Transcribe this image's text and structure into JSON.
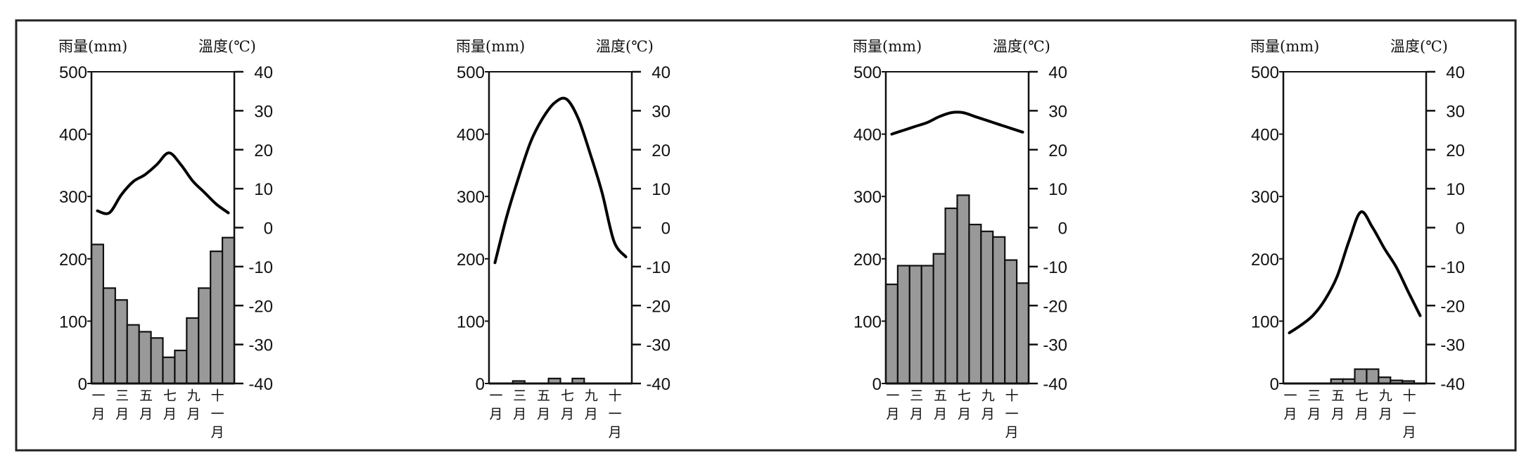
{
  "colors": {
    "bar": "#999999",
    "line": "#000000",
    "axis": "#111111"
  },
  "chart_data": [
    {
      "type": "bar+line",
      "title": "",
      "ylabel_left": "雨量(mm)",
      "ylabel_right": "溫度(℃)",
      "left_ticks": [
        "500",
        "400",
        "300",
        "200",
        "100",
        "0"
      ],
      "right_ticks": [
        "40",
        "30",
        "20",
        "10",
        "0",
        "-10",
        "-20",
        "-30",
        "-40"
      ],
      "rain_ylim": [
        0,
        500
      ],
      "temp_ylim": [
        -40,
        40
      ],
      "month_labels": [
        "一月",
        "三月",
        "五月",
        "七月",
        "九月",
        "十一月"
      ],
      "rainfall_mm": [
        223,
        153,
        134,
        94,
        83,
        73,
        42,
        53,
        105,
        153,
        212,
        234
      ],
      "temperature_c": [
        4.3,
        3.8,
        8.4,
        11.8,
        13.6,
        16.2,
        19.2,
        16.2,
        12,
        9,
        6,
        3.8
      ]
    },
    {
      "type": "bar+line",
      "title": "",
      "ylabel_left": "雨量(mm)",
      "ylabel_right": "溫度(℃)",
      "left_ticks": [
        "500",
        "400",
        "300",
        "200",
        "100",
        "0"
      ],
      "right_ticks": [
        "40",
        "30",
        "20",
        "10",
        "0",
        "-10",
        "-20",
        "-30",
        "-40"
      ],
      "rain_ylim": [
        0,
        500
      ],
      "temp_ylim": [
        -40,
        40
      ],
      "month_labels": [
        "一月",
        "三月",
        "五月",
        "七月",
        "九月",
        "十一月"
      ],
      "rainfall_mm": [
        0,
        0,
        4,
        0,
        0,
        8,
        0,
        8,
        0,
        0,
        0,
        0
      ],
      "temperature_c": [
        -9,
        3,
        13,
        22,
        28,
        32,
        33,
        28,
        19,
        9,
        -3.5,
        -7.5
      ]
    },
    {
      "type": "bar+line",
      "title": "",
      "ylabel_left": "雨量(mm)",
      "ylabel_right": "溫度(℃)",
      "left_ticks": [
        "500",
        "400",
        "300",
        "200",
        "100",
        "0"
      ],
      "right_ticks": [
        "40",
        "30",
        "20",
        "10",
        "0",
        "-10",
        "-20",
        "-30",
        "-40"
      ],
      "rain_ylim": [
        0,
        500
      ],
      "temp_ylim": [
        -40,
        40
      ],
      "month_labels": [
        "一月",
        "三月",
        "五月",
        "七月",
        "九月",
        "十一月"
      ],
      "rainfall_mm": [
        159,
        189,
        189,
        189,
        208,
        281,
        302,
        255,
        244,
        235,
        198,
        161
      ],
      "temperature_c": [
        24,
        25,
        26,
        27,
        28.5,
        29.5,
        29.5,
        28.5,
        27.5,
        26.5,
        25.5,
        24.5
      ]
    },
    {
      "type": "bar+line",
      "title": "",
      "ylabel_left": "雨量(mm)",
      "ylabel_right": "溫度(℃)",
      "left_ticks": [
        "500",
        "400",
        "300",
        "200",
        "100",
        "0"
      ],
      "right_ticks": [
        "40",
        "30",
        "20",
        "10",
        "0",
        "-10",
        "-20",
        "-30",
        "-40"
      ],
      "rain_ylim": [
        0,
        500
      ],
      "temp_ylim": [
        -40,
        40
      ],
      "month_labels": [
        "一月",
        "三月",
        "五月",
        "七月",
        "九月",
        "十一月"
      ],
      "rainfall_mm": [
        0,
        0,
        0,
        0,
        7,
        7,
        23,
        23,
        10,
        5,
        4,
        0
      ],
      "temperature_c": [
        -27,
        -25,
        -22.5,
        -18.5,
        -12.7,
        -3.6,
        4,
        0,
        -5.4,
        -10.2,
        -16.5,
        -22.6
      ]
    }
  ]
}
